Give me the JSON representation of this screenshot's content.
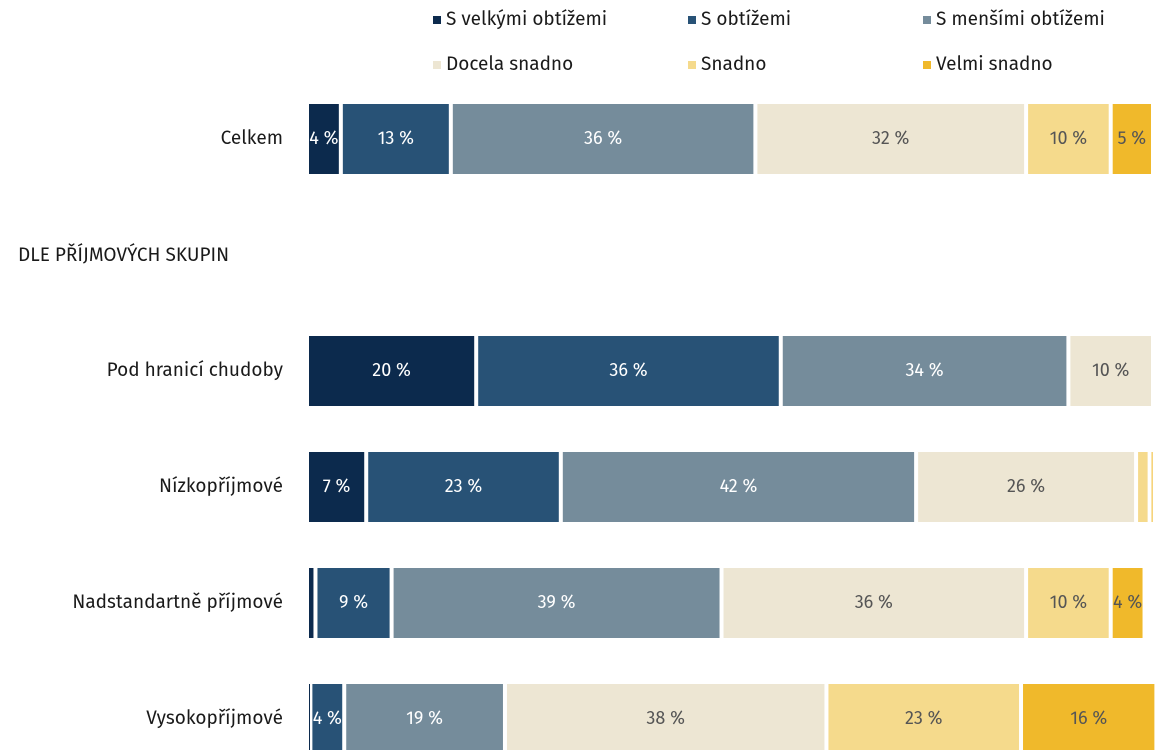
{
  "chart_data": {
    "type": "stacked-bar-horizontal",
    "section_label": "DLE PŘÍJMOVÝCH SKUPIN",
    "categories": [
      "Celkem",
      "Pod hranicí chudoby",
      "Nízkopříjmové",
      "Nadstandartně příjmové",
      "Vysokopříjmové"
    ],
    "xlim": [
      0,
      100
    ],
    "series": [
      {
        "name": "S velkými obtížemi",
        "color": "#0c2a4d",
        "values": [
          4,
          20,
          7,
          1,
          0.4
        ],
        "value_labels": [
          "4 %",
          "20 %",
          "7 %",
          null,
          null
        ]
      },
      {
        "name": "S obtížemi",
        "color": "#285276",
        "values": [
          13,
          36,
          23,
          9,
          4
        ],
        "value_labels": [
          "13 %",
          "36 %",
          "23 %",
          "9 %",
          "4 %"
        ]
      },
      {
        "name": "S menšími obtížemi",
        "color": "#758c9b",
        "values": [
          36,
          34,
          42,
          39,
          19
        ],
        "value_labels": [
          "36 %",
          "34 %",
          "42 %",
          "39 %",
          "19 %"
        ]
      },
      {
        "name": "Docela snadno",
        "color": "#ede6d3",
        "values": [
          32,
          10,
          26,
          36,
          38
        ],
        "value_labels": [
          "32 %",
          "10 %",
          "26 %",
          "36 %",
          "38 %"
        ]
      },
      {
        "name": "Snadno",
        "color": "#f5da8c",
        "values": [
          10,
          0,
          1.6,
          10,
          23
        ],
        "value_labels": [
          "10 %",
          null,
          null,
          "10 %",
          "23 %"
        ]
      },
      {
        "name": "Velmi snadno",
        "color": "#f0b92b",
        "values": [
          5,
          0,
          0.4,
          4,
          16
        ],
        "value_labels": [
          "5 %",
          null,
          null,
          "4 %",
          "16 %"
        ]
      }
    ]
  }
}
